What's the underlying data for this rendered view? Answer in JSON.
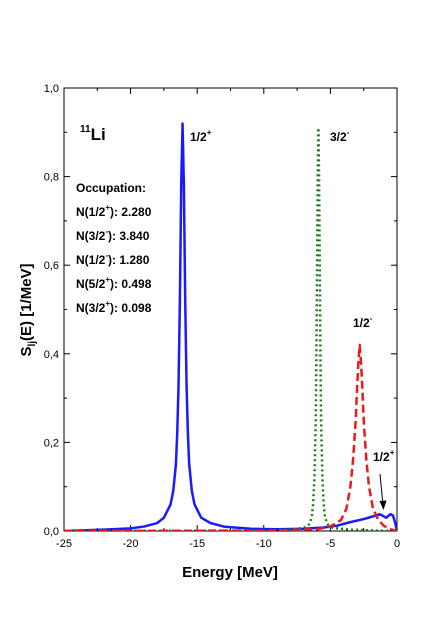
{
  "chart_data": {
    "type": "line",
    "xlabel": "Energy [MeV]",
    "ylabel": "S",
    "ylabel_sub": "lj",
    "ylabel_tail": "(E) [1/MeV]",
    "xlim": [
      -25,
      0
    ],
    "ylim": [
      0,
      1.0
    ],
    "x_ticks": [
      {
        "value": -25,
        "label": "-25"
      },
      {
        "value": -20,
        "label": "-20"
      },
      {
        "value": -15,
        "label": "-15"
      },
      {
        "value": -10,
        "label": "-10"
      },
      {
        "value": -5,
        "label": "-5"
      },
      {
        "value": 0,
        "label": "0"
      }
    ],
    "y_ticks": [
      {
        "value": 0.0,
        "label": "0,0"
      },
      {
        "value": 0.2,
        "label": "0,2"
      },
      {
        "value": 0.4,
        "label": "0,4"
      },
      {
        "value": 0.6,
        "label": "0,6"
      },
      {
        "value": 0.8,
        "label": "0,8"
      },
      {
        "value": 1.0,
        "label": "1,0"
      }
    ],
    "grid": false,
    "series": [
      {
        "color": "#1a1aff",
        "dash": "solid",
        "points": [
          [
            -25,
            0.0
          ],
          [
            -22,
            0.003
          ],
          [
            -20,
            0.006
          ],
          [
            -19,
            0.01
          ],
          [
            -18,
            0.018
          ],
          [
            -17.5,
            0.03
          ],
          [
            -17,
            0.06
          ],
          [
            -16.8,
            0.09
          ],
          [
            -16.6,
            0.15
          ],
          [
            -16.5,
            0.22
          ],
          [
            -16.4,
            0.33
          ],
          [
            -16.3,
            0.52
          ],
          [
            -16.2,
            0.78
          ],
          [
            -16.1,
            0.92
          ],
          [
            -16.0,
            0.78
          ],
          [
            -15.9,
            0.52
          ],
          [
            -15.8,
            0.33
          ],
          [
            -15.7,
            0.22
          ],
          [
            -15.6,
            0.15
          ],
          [
            -15.4,
            0.09
          ],
          [
            -15.2,
            0.06
          ],
          [
            -14.7,
            0.03
          ],
          [
            -14.0,
            0.018
          ],
          [
            -13.0,
            0.01
          ],
          [
            -11,
            0.005
          ],
          [
            -9,
            0.004
          ],
          [
            -7,
            0.005
          ],
          [
            -5.5,
            0.008
          ],
          [
            -4.5,
            0.012
          ],
          [
            -3.5,
            0.02
          ],
          [
            -2.5,
            0.027
          ],
          [
            -1.8,
            0.033
          ],
          [
            -1.3,
            0.038
          ],
          [
            -0.8,
            0.03
          ],
          [
            -0.5,
            0.038
          ],
          [
            -0.3,
            0.035
          ],
          [
            -0.15,
            0.02
          ],
          [
            0,
            0.0
          ]
        ]
      },
      {
        "color": "#1a7a1a",
        "dash": "dotted",
        "points": [
          [
            -25,
            0.0
          ],
          [
            -10,
            0.001
          ],
          [
            -8,
            0.003
          ],
          [
            -7,
            0.007
          ],
          [
            -6.6,
            0.015
          ],
          [
            -6.4,
            0.03
          ],
          [
            -6.3,
            0.06
          ],
          [
            -6.2,
            0.12
          ],
          [
            -6.1,
            0.25
          ],
          [
            -6.05,
            0.4
          ],
          [
            -6.0,
            0.6
          ],
          [
            -5.95,
            0.8
          ],
          [
            -5.9,
            0.91
          ],
          [
            -5.85,
            0.8
          ],
          [
            -5.8,
            0.6
          ],
          [
            -5.75,
            0.4
          ],
          [
            -5.7,
            0.25
          ],
          [
            -5.6,
            0.12
          ],
          [
            -5.5,
            0.06
          ],
          [
            -5.4,
            0.03
          ],
          [
            -5.2,
            0.015
          ],
          [
            -4.8,
            0.007
          ],
          [
            -3.5,
            0.003
          ],
          [
            -1.5,
            0.001
          ],
          [
            0,
            0.0
          ]
        ]
      },
      {
        "color": "#e81a1a",
        "dash": "dashed",
        "points": [
          [
            -25,
            0.0
          ],
          [
            -9,
            0.001
          ],
          [
            -6,
            0.004
          ],
          [
            -5,
            0.01
          ],
          [
            -4.2,
            0.025
          ],
          [
            -3.8,
            0.05
          ],
          [
            -3.5,
            0.1
          ],
          [
            -3.3,
            0.16
          ],
          [
            -3.1,
            0.25
          ],
          [
            -3.0,
            0.32
          ],
          [
            -2.9,
            0.38
          ],
          [
            -2.8,
            0.42
          ],
          [
            -2.7,
            0.38
          ],
          [
            -2.6,
            0.32
          ],
          [
            -2.5,
            0.25
          ],
          [
            -2.3,
            0.16
          ],
          [
            -2.1,
            0.1
          ],
          [
            -1.8,
            0.05
          ],
          [
            -1.4,
            0.025
          ],
          [
            -1.0,
            0.012
          ],
          [
            -0.5,
            0.004
          ],
          [
            0,
            0.0
          ]
        ]
      }
    ],
    "annotations": {
      "nucleus_mass": "11",
      "nucleus_symbol": "Li",
      "peak1_state": "1/2",
      "peak1_parity": "+",
      "peak2_state": "3/2",
      "peak2_parity": "-",
      "peak3_state": "1/2",
      "peak3_parity": "-",
      "peak4_state": "1/2",
      "peak4_parity": "+"
    },
    "occupation": {
      "title": "Occupation:",
      "rows": [
        {
          "state": "1/2",
          "parity": "+",
          "value": "2.280"
        },
        {
          "state": "3/2",
          "parity": "-",
          "value": "3.840"
        },
        {
          "state": "1/2",
          "parity": "-",
          "value": "1.280"
        },
        {
          "state": "5/2",
          "parity": "+",
          "value": "0.498"
        },
        {
          "state": "3/2",
          "parity": "+",
          "value": "0.098"
        }
      ]
    }
  }
}
